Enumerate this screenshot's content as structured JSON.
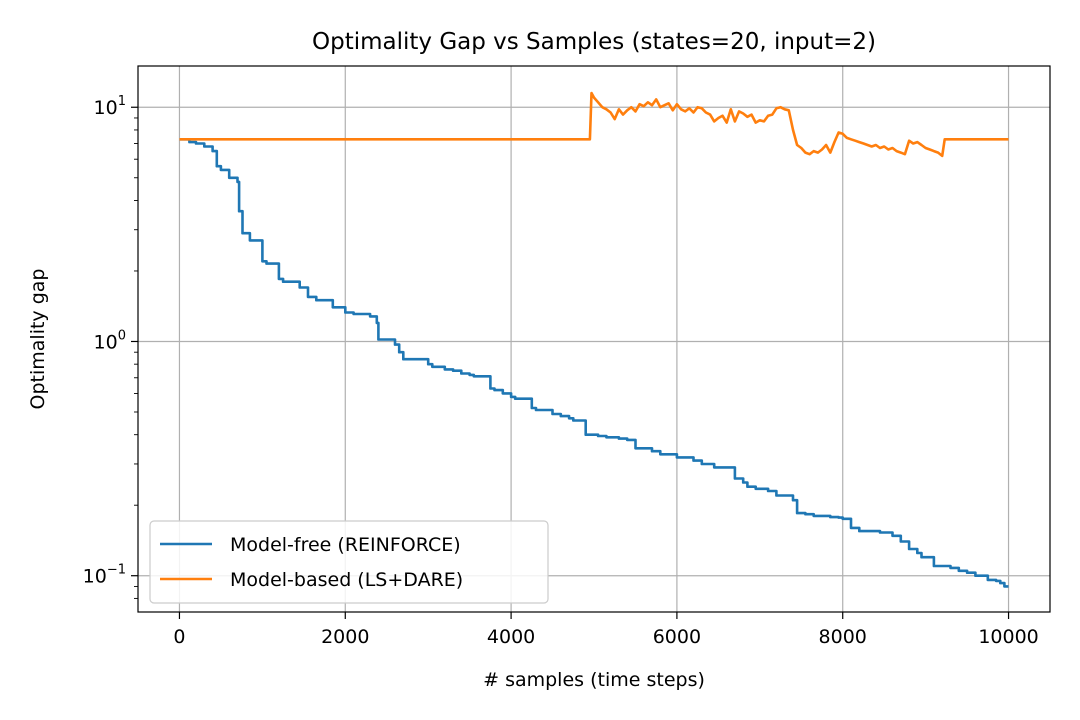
{
  "chart_data": {
    "type": "line",
    "title": "Optimality Gap vs Samples  (states=20, input=2)",
    "xlabel": "# samples (time steps)",
    "ylabel": "Optimality gap",
    "x_scale": "linear",
    "y_scale": "log",
    "xlim": [
      -500,
      10500
    ],
    "ylim": [
      0.07,
      15
    ],
    "x_ticks": [
      0,
      2000,
      4000,
      6000,
      8000,
      10000
    ],
    "x_tick_labels": [
      "0",
      "2000",
      "4000",
      "6000",
      "8000",
      "10000"
    ],
    "y_ticks": [
      {
        "value": 10,
        "base": "10",
        "exp": "1"
      },
      {
        "value": 1,
        "base": "10",
        "exp": "0"
      },
      {
        "value": 0.1,
        "base": "10",
        "exp": "−1"
      }
    ],
    "grid": true,
    "legend": {
      "position": "bottom-left"
    },
    "series": [
      {
        "name": "Model-free (REINFORCE)",
        "color": "#1f77b4",
        "step": true,
        "x": [
          0,
          120,
          200,
          300,
          400,
          450,
          500,
          600,
          700,
          720,
          760,
          850,
          1000,
          1050,
          1200,
          1250,
          1450,
          1550,
          1650,
          1850,
          2000,
          2100,
          2300,
          2380,
          2400,
          2600,
          2650,
          2700,
          3000,
          3050,
          3200,
          3300,
          3400,
          3500,
          3550,
          3750,
          3800,
          3900,
          4000,
          4050,
          4250,
          4300,
          4500,
          4600,
          4700,
          4750,
          4900,
          5050,
          5150,
          5300,
          5400,
          5500,
          5700,
          5800,
          6000,
          6200,
          6300,
          6450,
          6650,
          6700,
          6800,
          6850,
          6950,
          7100,
          7200,
          7400,
          7450,
          7550,
          7650,
          7850,
          7950,
          8000,
          8100,
          8200,
          8450,
          8600,
          8700,
          8800,
          8900,
          8950,
          9100,
          9300,
          9400,
          9500,
          9600,
          9750,
          9850,
          9900,
          9950,
          10000
        ],
        "values": [
          7.3,
          7.1,
          7.0,
          6.8,
          6.5,
          5.6,
          5.4,
          5.0,
          4.8,
          3.6,
          2.9,
          2.7,
          2.2,
          2.15,
          1.85,
          1.8,
          1.7,
          1.55,
          1.5,
          1.4,
          1.33,
          1.31,
          1.28,
          1.2,
          1.02,
          0.97,
          0.9,
          0.84,
          0.8,
          0.78,
          0.76,
          0.75,
          0.73,
          0.72,
          0.71,
          0.63,
          0.62,
          0.6,
          0.58,
          0.57,
          0.52,
          0.51,
          0.49,
          0.48,
          0.47,
          0.46,
          0.4,
          0.395,
          0.39,
          0.385,
          0.38,
          0.35,
          0.34,
          0.33,
          0.32,
          0.31,
          0.3,
          0.29,
          0.29,
          0.26,
          0.25,
          0.24,
          0.235,
          0.23,
          0.22,
          0.21,
          0.185,
          0.183,
          0.18,
          0.178,
          0.177,
          0.175,
          0.16,
          0.155,
          0.153,
          0.148,
          0.14,
          0.13,
          0.125,
          0.12,
          0.11,
          0.108,
          0.105,
          0.103,
          0.1,
          0.096,
          0.095,
          0.093,
          0.09,
          0.09
        ]
      },
      {
        "name": "Model-based (LS+DARE)",
        "color": "#ff7f0e",
        "step": false,
        "x": [
          0,
          4950,
          4970,
          5000,
          5050,
          5100,
          5150,
          5200,
          5250,
          5300,
          5350,
          5400,
          5450,
          5500,
          5550,
          5600,
          5650,
          5700,
          5750,
          5800,
          5850,
          5900,
          5950,
          6000,
          6050,
          6100,
          6150,
          6200,
          6250,
          6300,
          6350,
          6400,
          6450,
          6500,
          6550,
          6600,
          6650,
          6700,
          6750,
          6800,
          6850,
          6900,
          6950,
          7000,
          7050,
          7100,
          7150,
          7200,
          7250,
          7300,
          7350,
          7400,
          7450,
          7500,
          7550,
          7600,
          7650,
          7700,
          7750,
          7800,
          7850,
          7900,
          7950,
          8000,
          8050,
          8100,
          8150,
          8200,
          8250,
          8300,
          8350,
          8400,
          8450,
          8500,
          8550,
          8600,
          8650,
          8700,
          8750,
          8800,
          8850,
          8900,
          8950,
          9000,
          9050,
          9100,
          9150,
          9200,
          9230,
          10000
        ],
        "values": [
          7.3,
          7.3,
          11.5,
          11.0,
          10.5,
          10.0,
          9.8,
          9.5,
          8.9,
          9.8,
          9.3,
          9.7,
          10.0,
          9.6,
          10.3,
          10.1,
          10.5,
          10.2,
          10.8,
          10.0,
          10.2,
          10.4,
          9.7,
          10.3,
          9.8,
          9.6,
          9.9,
          9.5,
          10.0,
          9.9,
          9.5,
          9.3,
          8.7,
          9.0,
          9.2,
          8.6,
          9.8,
          8.7,
          9.6,
          9.4,
          9.1,
          9.3,
          8.6,
          8.8,
          8.7,
          9.2,
          9.3,
          9.9,
          10.0,
          9.8,
          9.7,
          8.0,
          6.9,
          6.7,
          6.4,
          6.3,
          6.5,
          6.4,
          6.6,
          6.9,
          6.4,
          7.1,
          7.8,
          7.7,
          7.4,
          7.3,
          7.2,
          7.1,
          7.0,
          6.9,
          6.8,
          6.9,
          6.7,
          6.8,
          6.6,
          6.7,
          6.5,
          6.4,
          6.3,
          7.2,
          7.0,
          7.1,
          6.9,
          6.7,
          6.6,
          6.5,
          6.4,
          6.2,
          7.3,
          7.3
        ]
      }
    ]
  }
}
